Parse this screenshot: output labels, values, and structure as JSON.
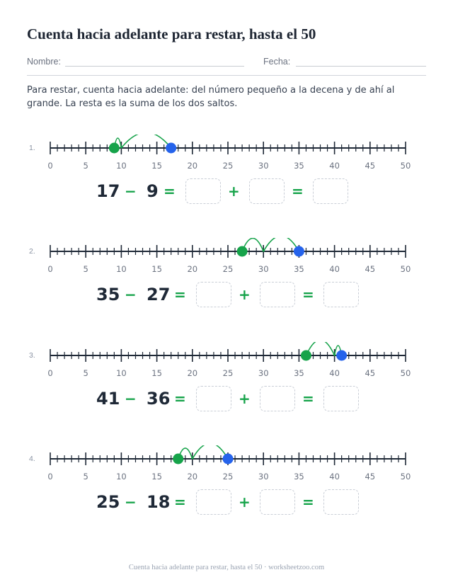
{
  "header": {
    "title": "Cuenta hacia adelante para restar, hasta el 50",
    "name_label": "Nombre:",
    "date_label": "Fecha:"
  },
  "instructions": "Para restar, cuenta hacia adelante: del número pequeño a la decena y de ahí al grande. La resta es la suma de los dos saltos.",
  "number_line": {
    "min": 0,
    "max": 50,
    "labels": [
      "0",
      "5",
      "10",
      "15",
      "20",
      "25",
      "30",
      "35",
      "40",
      "45",
      "50"
    ],
    "start_color": "#16a34a",
    "end_color": "#2563eb",
    "arc_color": "#16a34a",
    "line_color": "#1f2937"
  },
  "problems": [
    {
      "num": "1.",
      "minuend": "17",
      "subtrahend": "9",
      "minus": "−",
      "equals1": "=",
      "plus": "+",
      "equals2": "=",
      "start": 9,
      "tens": 10,
      "end": 17
    },
    {
      "num": "2.",
      "minuend": "35",
      "subtrahend": "27",
      "minus": "−",
      "equals1": "=",
      "plus": "+",
      "equals2": "=",
      "start": 27,
      "tens": 30,
      "end": 35
    },
    {
      "num": "3.",
      "minuend": "41",
      "subtrahend": "36",
      "minus": "−",
      "equals1": "=",
      "plus": "+",
      "equals2": "=",
      "start": 36,
      "tens": 40,
      "end": 41
    },
    {
      "num": "4.",
      "minuend": "25",
      "subtrahend": "18",
      "minus": "−",
      "equals1": "=",
      "plus": "+",
      "equals2": "=",
      "start": 18,
      "tens": 20,
      "end": 25
    }
  ],
  "footer": "Cuenta hacia adelante para restar, hasta el 50 · worksheetzoo.com"
}
